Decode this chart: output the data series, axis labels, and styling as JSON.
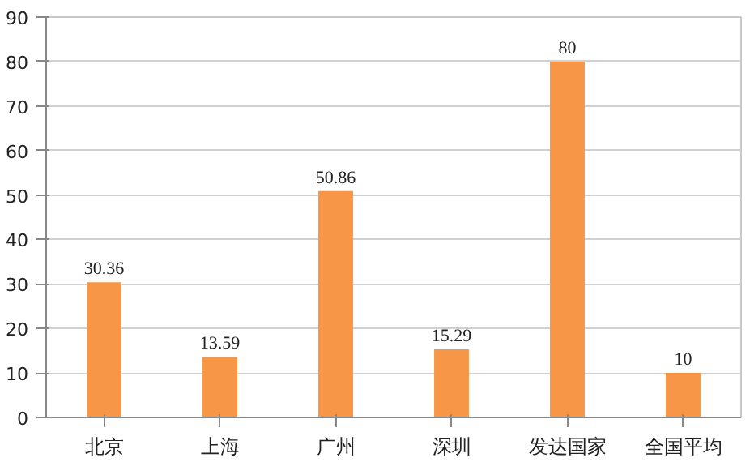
{
  "chart_data": {
    "type": "bar",
    "categories": [
      "北京",
      "上海",
      "广州",
      "深圳",
      "发达国家",
      "全国平均"
    ],
    "values": [
      30.36,
      13.59,
      50.86,
      15.29,
      80,
      10
    ],
    "color": "#f79646",
    "ylim": [
      0,
      90
    ],
    "yticks": [
      0,
      10,
      20,
      30,
      40,
      50,
      60,
      70,
      80,
      90
    ],
    "grid": "y",
    "data_labels": true
  }
}
